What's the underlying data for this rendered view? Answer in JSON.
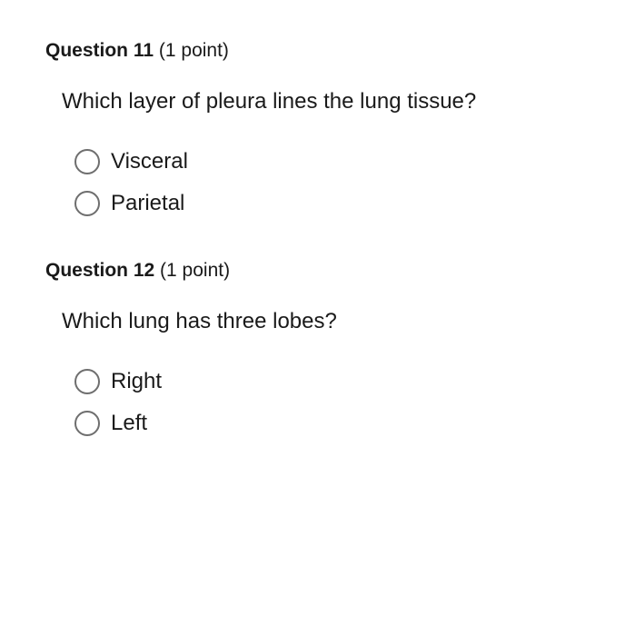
{
  "questions": [
    {
      "number": "Question 11",
      "points": "(1 point)",
      "stem": "Which layer of pleura lines the lung tissue?",
      "options": [
        "Visceral",
        "Parietal"
      ]
    },
    {
      "number": "Question 12",
      "points": "(1 point)",
      "stem": "Which lung has three lobes?",
      "options": [
        "Right",
        "Left"
      ]
    }
  ],
  "colors": {
    "text": "#1a1a1a",
    "radio_border": "#6e6e6e",
    "background": "#ffffff"
  }
}
